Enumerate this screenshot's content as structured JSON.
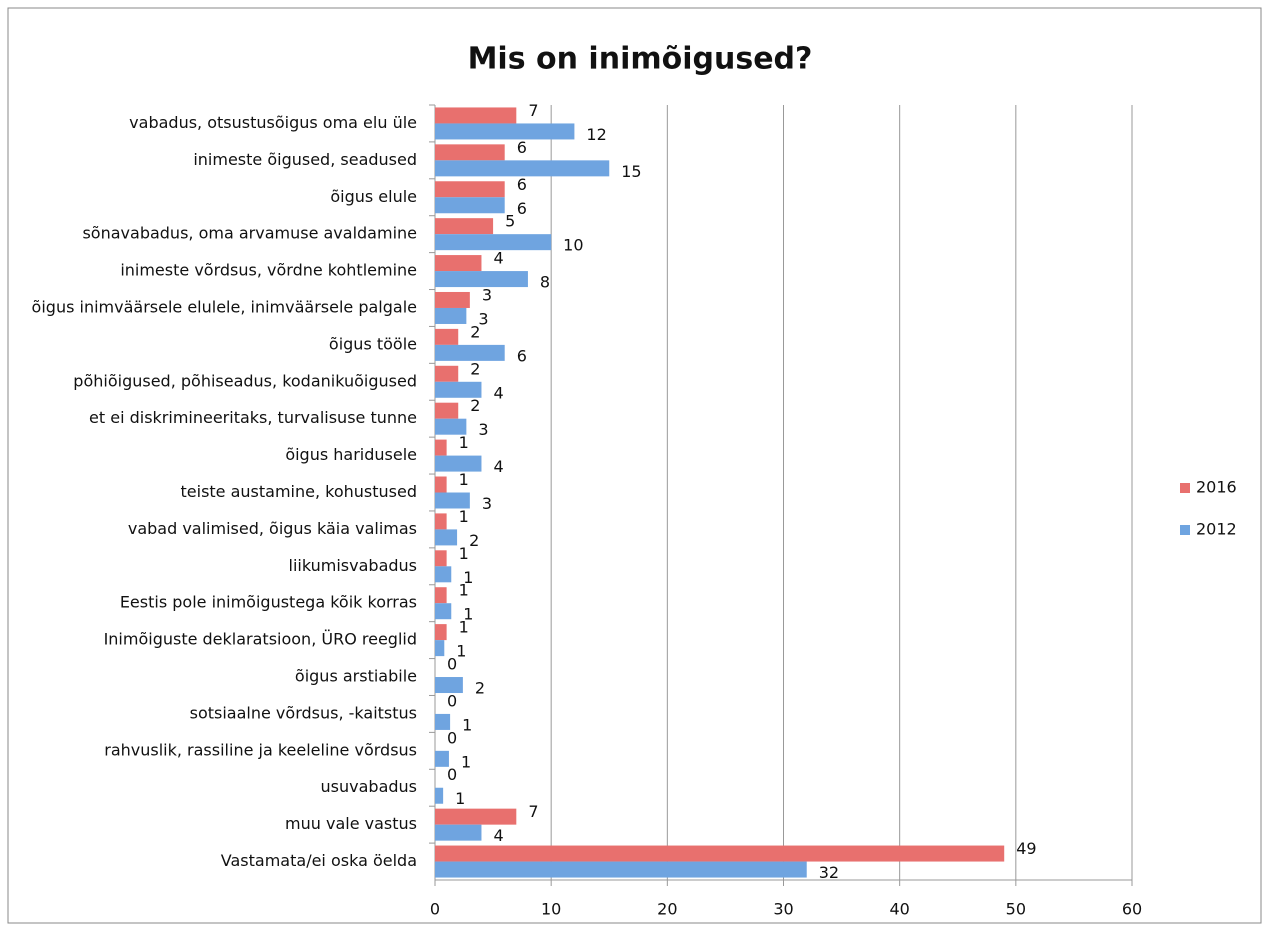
{
  "chart_data": {
    "type": "hbar",
    "title": "Mis on inimõigused?",
    "categories": [
      "vabadus, otsustusõigus oma elu üle",
      "inimeste õigused, seadused",
      "õigus elule",
      "sõnavabadus, oma arvamuse avaldamine",
      "inimeste võrdsus, võrdne kohtlemine",
      "õigus inimväärsele elulele, inimväärsele palgale",
      "õigus tööle",
      "põhiõigused, põhiseadus, kodanikuõigused",
      "et ei diskrimineeritaks, turvalisuse tunne",
      "õigus haridusele",
      "teiste austamine, kohustused",
      "vabad valimised, õigus käia valimas",
      "liikumisvabadus",
      "Eestis pole inimõigustega kõik korras",
      "Inimõiguste deklaratsioon, ÜRO reeglid",
      "õigus arstiabile",
      "sotsiaalne võrdsus, -kaitstus",
      "rahvuslik,  rassiline ja keeleline võrdsus",
      "usuvabadus",
      "muu vale vastus",
      "Vastamata/ei oska öelda"
    ],
    "series": [
      {
        "name": "2016",
        "color": "#e8706e",
        "values": [
          7,
          6,
          6,
          5,
          4,
          3,
          2,
          2,
          2,
          1,
          1,
          1,
          1,
          1,
          1,
          0,
          0,
          0,
          0,
          7,
          49
        ],
        "value_labels": [
          "7",
          "6",
          "6",
          "5",
          "4",
          "3",
          "2",
          "2",
          "2",
          "1",
          "1",
          "1",
          "1",
          "1",
          "1",
          "0",
          "0",
          "0",
          "0",
          "7",
          "49"
        ]
      },
      {
        "name": "2012",
        "color": "#6fa4e0",
        "values": [
          12,
          15,
          6,
          10,
          8,
          2.7,
          6,
          4,
          2.7,
          4,
          3,
          1.9,
          1.4,
          1.4,
          0.8,
          2.4,
          1.3,
          1.2,
          0.7,
          4,
          32
        ],
        "value_labels": [
          "12",
          "15",
          "6",
          "10",
          "8",
          "3",
          "6",
          "4",
          "3",
          "4",
          "3",
          "2",
          "1",
          "1",
          "1",
          "2",
          "1",
          "1",
          "1",
          "4",
          "32"
        ]
      }
    ],
    "xlim": [
      0,
      60
    ],
    "xticks": [
      0,
      10,
      20,
      30,
      40,
      50,
      60
    ],
    "grid": true,
    "legend": "right"
  }
}
